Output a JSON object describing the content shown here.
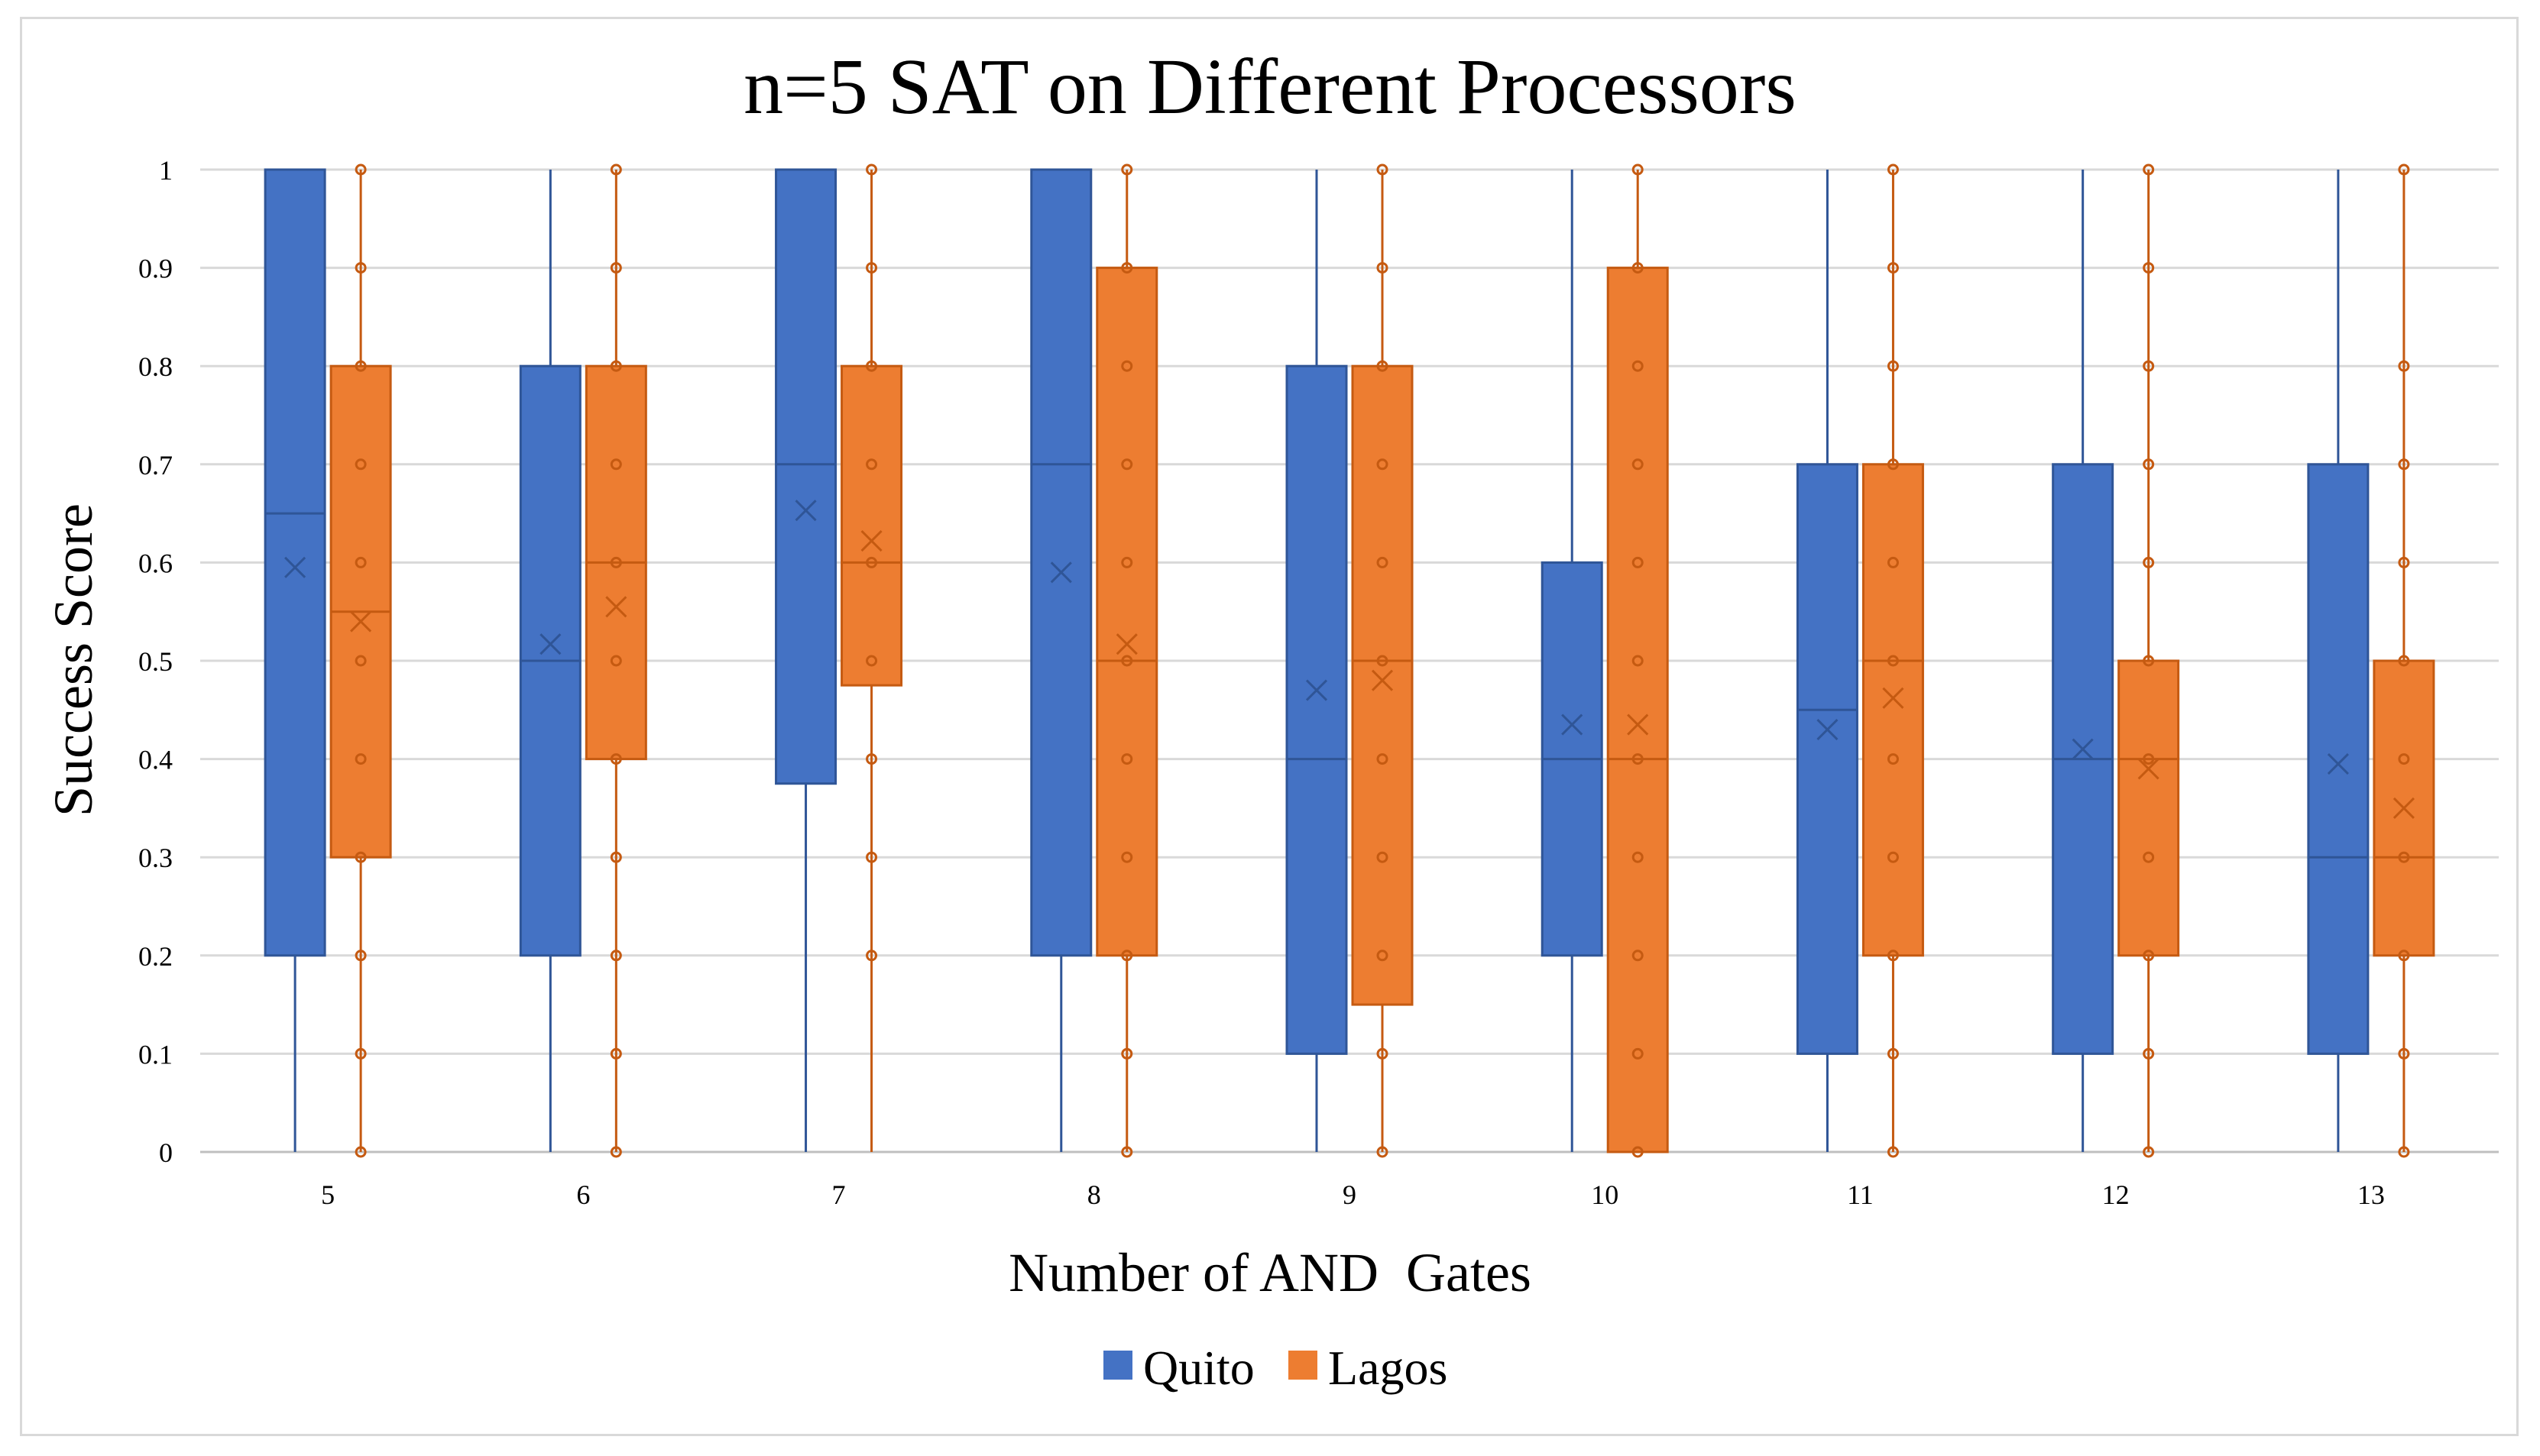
{
  "chart_data": {
    "type": "box",
    "title": "n=5 SAT on Different Processors",
    "xlabel": "Number of AND  Gates",
    "ylabel": "Success Score",
    "ylim": [
      0,
      1
    ],
    "yticks": [
      "0",
      "0.1",
      "0.2",
      "0.3",
      "0.4",
      "0.5",
      "0.6",
      "0.7",
      "0.8",
      "0.9",
      "1"
    ],
    "categories": [
      "5",
      "6",
      "7",
      "8",
      "9",
      "10",
      "11",
      "12",
      "13"
    ],
    "grid": true,
    "legend_position": "bottom",
    "series": [
      {
        "name": "Quito",
        "color": "#4472c4",
        "boxes": [
          {
            "min": 0,
            "q1": 0.2,
            "median": 0.65,
            "q3": 1.0,
            "max": 1.0,
            "mean": 0.595,
            "points": []
          },
          {
            "min": 0,
            "q1": 0.2,
            "median": 0.5,
            "q3": 0.8,
            "max": 1.0,
            "mean": 0.517,
            "points": []
          },
          {
            "min": 0,
            "q1": 0.375,
            "median": 0.7,
            "q3": 1.0,
            "max": 1.0,
            "mean": 0.653,
            "points": []
          },
          {
            "min": 0,
            "q1": 0.2,
            "median": 0.7,
            "q3": 1.0,
            "max": 1.0,
            "mean": 0.59,
            "points": []
          },
          {
            "min": 0,
            "q1": 0.1,
            "median": 0.4,
            "q3": 0.8,
            "max": 1.0,
            "mean": 0.47,
            "points": []
          },
          {
            "min": 0,
            "q1": 0.2,
            "median": 0.4,
            "q3": 0.6,
            "max": 1.0,
            "mean": 0.435,
            "points": []
          },
          {
            "min": 0,
            "q1": 0.1,
            "median": 0.45,
            "q3": 0.7,
            "max": 1.0,
            "mean": 0.43,
            "points": []
          },
          {
            "min": 0,
            "q1": 0.1,
            "median": 0.4,
            "q3": 0.7,
            "max": 1.0,
            "mean": 0.41,
            "points": []
          },
          {
            "min": 0,
            "q1": 0.1,
            "median": 0.3,
            "q3": 0.7,
            "max": 1.0,
            "mean": 0.395,
            "points": []
          }
        ]
      },
      {
        "name": "Lagos",
        "color": "#ed7d31",
        "boxes": [
          {
            "min": 0,
            "q1": 0.3,
            "median": 0.55,
            "q3": 0.8,
            "max": 1.0,
            "mean": 0.54,
            "points": [
              0,
              0.1,
              0.2,
              0.3,
              0.4,
              0.5,
              0.6,
              0.7,
              0.8,
              0.9,
              1.0
            ]
          },
          {
            "min": 0,
            "q1": 0.4,
            "median": 0.6,
            "q3": 0.8,
            "max": 1.0,
            "mean": 0.555,
            "points": [
              0,
              0.1,
              0.2,
              0.3,
              0.4,
              0.5,
              0.6,
              0.7,
              0.8,
              0.9,
              1.0
            ]
          },
          {
            "min": 0,
            "q1": 0.475,
            "median": 0.6,
            "q3": 0.8,
            "max": 1.0,
            "mean": 0.622,
            "points": [
              0.2,
              0.3,
              0.4,
              0.5,
              0.6,
              0.7,
              0.8,
              0.9,
              1.0
            ]
          },
          {
            "min": 0,
            "q1": 0.2,
            "median": 0.5,
            "q3": 0.9,
            "max": 1.0,
            "mean": 0.517,
            "points": [
              0,
              0.1,
              0.2,
              0.3,
              0.4,
              0.5,
              0.6,
              0.7,
              0.8,
              0.9,
              1.0
            ]
          },
          {
            "min": 0,
            "q1": 0.15,
            "median": 0.5,
            "q3": 0.8,
            "max": 1.0,
            "mean": 0.48,
            "points": [
              0,
              0.1,
              0.2,
              0.3,
              0.4,
              0.5,
              0.6,
              0.7,
              0.8,
              0.9,
              1.0
            ]
          },
          {
            "min": 0,
            "q1": 0.0,
            "median": 0.4,
            "q3": 0.9,
            "max": 1.0,
            "mean": 0.435,
            "points": [
              0,
              0.1,
              0.2,
              0.3,
              0.4,
              0.5,
              0.6,
              0.7,
              0.8,
              0.9,
              1.0
            ]
          },
          {
            "min": 0,
            "q1": 0.2,
            "median": 0.5,
            "q3": 0.7,
            "max": 1.0,
            "mean": 0.462,
            "points": [
              0,
              0.1,
              0.2,
              0.3,
              0.4,
              0.5,
              0.6,
              0.7,
              0.8,
              0.9,
              1.0
            ]
          },
          {
            "min": 0,
            "q1": 0.2,
            "median": 0.4,
            "q3": 0.5,
            "max": 1.0,
            "mean": 0.39,
            "points": [
              0,
              0.1,
              0.2,
              0.3,
              0.4,
              0.5,
              0.6,
              0.7,
              0.8,
              0.9,
              1.0
            ]
          },
          {
            "min": 0,
            "q1": 0.2,
            "median": 0.3,
            "q3": 0.5,
            "max": 1.0,
            "mean": 0.35,
            "points": [
              0,
              0.1,
              0.2,
              0.3,
              0.4,
              0.5,
              0.6,
              0.7,
              0.8,
              1.0
            ]
          }
        ]
      }
    ]
  }
}
